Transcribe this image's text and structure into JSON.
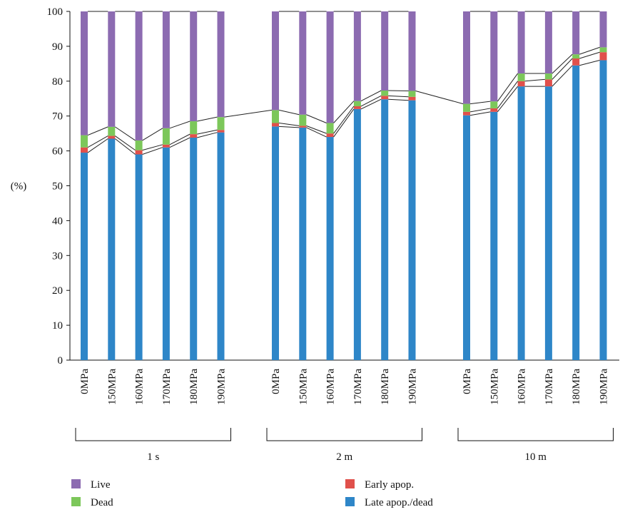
{
  "chart_data": {
    "type": "bar",
    "stacked": true,
    "ylabel": "(%)",
    "ylim": [
      0,
      100
    ],
    "yticks": [
      0,
      10,
      20,
      30,
      40,
      50,
      60,
      70,
      80,
      90,
      100
    ],
    "groups": [
      {
        "label": "1 s",
        "categories": [
          "0MPa",
          "150MPa",
          "160MPa",
          "170MPa",
          "180MPa",
          "190MPa"
        ]
      },
      {
        "label": "2 m",
        "categories": [
          "0MPa",
          "150MPa",
          "160MPa",
          "170MPa",
          "180MPa",
          "190MPa"
        ]
      },
      {
        "label": "10 m",
        "categories": [
          "0MPa",
          "150MPa",
          "160MPa",
          "170MPa",
          "180MPa",
          "190MPa"
        ]
      }
    ],
    "series": [
      {
        "name": "Late apop./dead",
        "color": "#2e86c8",
        "values": [
          59.5,
          63.5,
          59.0,
          61.0,
          63.8,
          65.3,
          67.0,
          66.7,
          64.0,
          72.0,
          74.8,
          74.5,
          70.2,
          71.2,
          78.5,
          78.5,
          84.5,
          86.0
        ]
      },
      {
        "name": "Early apop.",
        "color": "#e0504b",
        "values": [
          1.5,
          0.8,
          1.2,
          0.8,
          1.0,
          0.7,
          1.0,
          0.5,
          1.0,
          0.8,
          1.0,
          1.0,
          1.0,
          1.0,
          1.5,
          2.0,
          2.0,
          2.3
        ]
      },
      {
        "name": "Dead",
        "color": "#7cc75a",
        "values": [
          3.5,
          2.6,
          2.8,
          4.7,
          3.7,
          3.7,
          3.7,
          3.2,
          3.0,
          1.5,
          1.5,
          1.7,
          2.3,
          2.0,
          2.2,
          1.7,
          1.2,
          1.4
        ]
      },
      {
        "name": "Live",
        "color": "#8c6bb1",
        "values": [
          35.5,
          33.1,
          37.0,
          33.5,
          31.5,
          30.3,
          28.3,
          29.6,
          32.0,
          25.7,
          22.7,
          22.8,
          26.5,
          25.8,
          17.8,
          17.8,
          12.3,
          10.3
        ]
      }
    ],
    "legend": [
      {
        "name": "Live",
        "color": "#8c6bb1"
      },
      {
        "name": "Early apop.",
        "color": "#e0504b"
      },
      {
        "name": "Dead",
        "color": "#7cc75a"
      },
      {
        "name": "Late apop./dead",
        "color": "#2e86c8"
      }
    ],
    "legend_position": "bottom"
  }
}
